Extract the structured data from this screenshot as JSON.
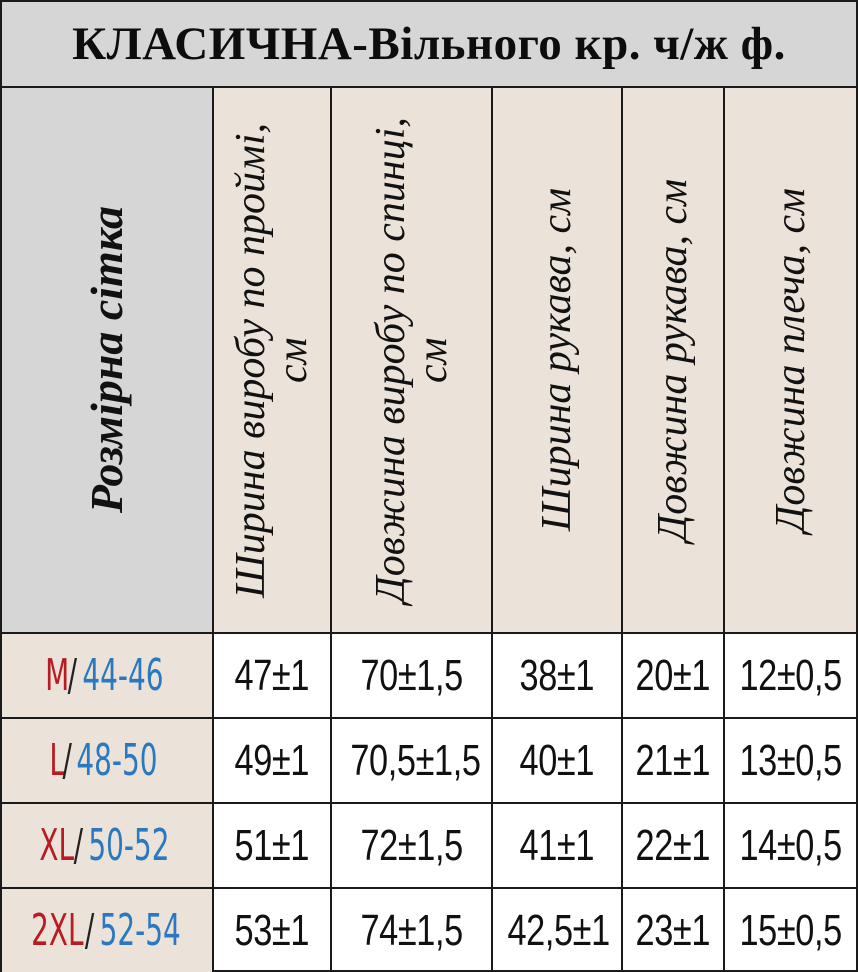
{
  "title": "КЛАСИЧНА-Вільного кр. ч/ж ф.",
  "headers": {
    "size_grid": "Розмірна сітка",
    "columns": [
      "Ширина виробу по проймі, см",
      "Довжина виробу по спинці, см",
      "Ширина рукава, см",
      "Довжина рукава, см",
      "Довжина плеча, см"
    ]
  },
  "rows": [
    {
      "size": "M",
      "range": "44-46",
      "values": [
        "47±1",
        "70±1,5",
        "38±1",
        "20±1",
        "12±0,5"
      ]
    },
    {
      "size": "L",
      "range": "48-50",
      "values": [
        "49±1",
        "70,5±1,5",
        "40±1",
        "21±1",
        "13±0,5"
      ]
    },
    {
      "size": "XL",
      "range": "50-52",
      "values": [
        "51±1",
        "72±1,5",
        "41±1",
        "22±1",
        "14±0,5"
      ]
    },
    {
      "size": "2XL",
      "range": "52-54",
      "values": [
        "53±1",
        "74±1,5",
        "42,5±1",
        "23±1",
        "15±0,5"
      ]
    }
  ],
  "colors": {
    "size_letter": "#b81c22",
    "size_range": "#2a78c0",
    "header_bg": "#ebe3da",
    "title_bg": "#d6d6d6"
  },
  "separator": "/"
}
